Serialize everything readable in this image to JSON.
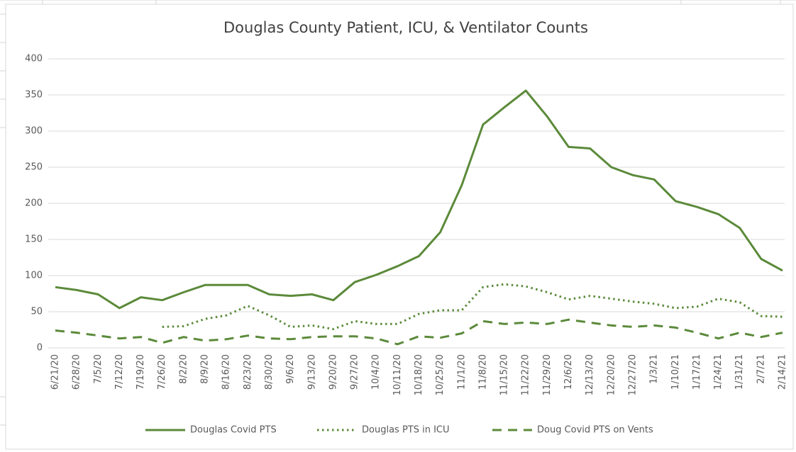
{
  "chart_data": {
    "type": "line",
    "title": "Douglas County Patient, ICU, & Ventilator Counts",
    "categories": [
      "6/21/20",
      "6/28/20",
      "7/5/20",
      "7/12/20",
      "7/19/20",
      "7/26/20",
      "8/2/20",
      "8/9/20",
      "8/16/20",
      "8/23/20",
      "8/30/20",
      "9/6/20",
      "9/13/20",
      "9/20/20",
      "9/27/20",
      "10/4/20",
      "10/11/20",
      "10/18/20",
      "10/25/20",
      "11/1/20",
      "11/8/20",
      "11/15/20",
      "11/22/20",
      "11/29/20",
      "12/6/20",
      "12/13/20",
      "12/20/20",
      "12/27/20",
      "1/3/21",
      "1/10/21",
      "1/17/21",
      "1/24/21",
      "1/31/21",
      "2/7/21",
      "2/14/21"
    ],
    "series": [
      {
        "name": "Douglas Covid PTS",
        "color": "#5b8a3a",
        "dash": "solid",
        "values": [
          84,
          80,
          74,
          55,
          70,
          66,
          77,
          87,
          87,
          87,
          74,
          72,
          74,
          66,
          91,
          101,
          113,
          127,
          160,
          225,
          309,
          333,
          356,
          320,
          278,
          276,
          250,
          239,
          233,
          203,
          195,
          185,
          166,
          123,
          107
        ]
      },
      {
        "name": "Douglas PTS in ICU",
        "color": "#5b8a3a",
        "dash": "dotted",
        "values": [
          null,
          null,
          null,
          null,
          null,
          29,
          30,
          40,
          45,
          58,
          45,
          29,
          31,
          26,
          37,
          33,
          33,
          47,
          52,
          52,
          84,
          88,
          85,
          77,
          67,
          72,
          68,
          64,
          61,
          55,
          57,
          68,
          63,
          44,
          43
        ]
      },
      {
        "name": "Doug Covid PTS on Vents",
        "color": "#5b8a3a",
        "dash": "dashed",
        "values": [
          24,
          21,
          17,
          13,
          15,
          7,
          15,
          10,
          12,
          17,
          13,
          12,
          15,
          16,
          16,
          13,
          5,
          16,
          14,
          20,
          37,
          33,
          35,
          33,
          39,
          35,
          31,
          29,
          31,
          28,
          21,
          13,
          21,
          15,
          21
        ]
      }
    ],
    "ylim": [
      0,
      400
    ],
    "yticks": [
      0,
      50,
      100,
      150,
      200,
      250,
      300,
      350,
      400
    ],
    "grid": true,
    "legend": "bottom"
  }
}
